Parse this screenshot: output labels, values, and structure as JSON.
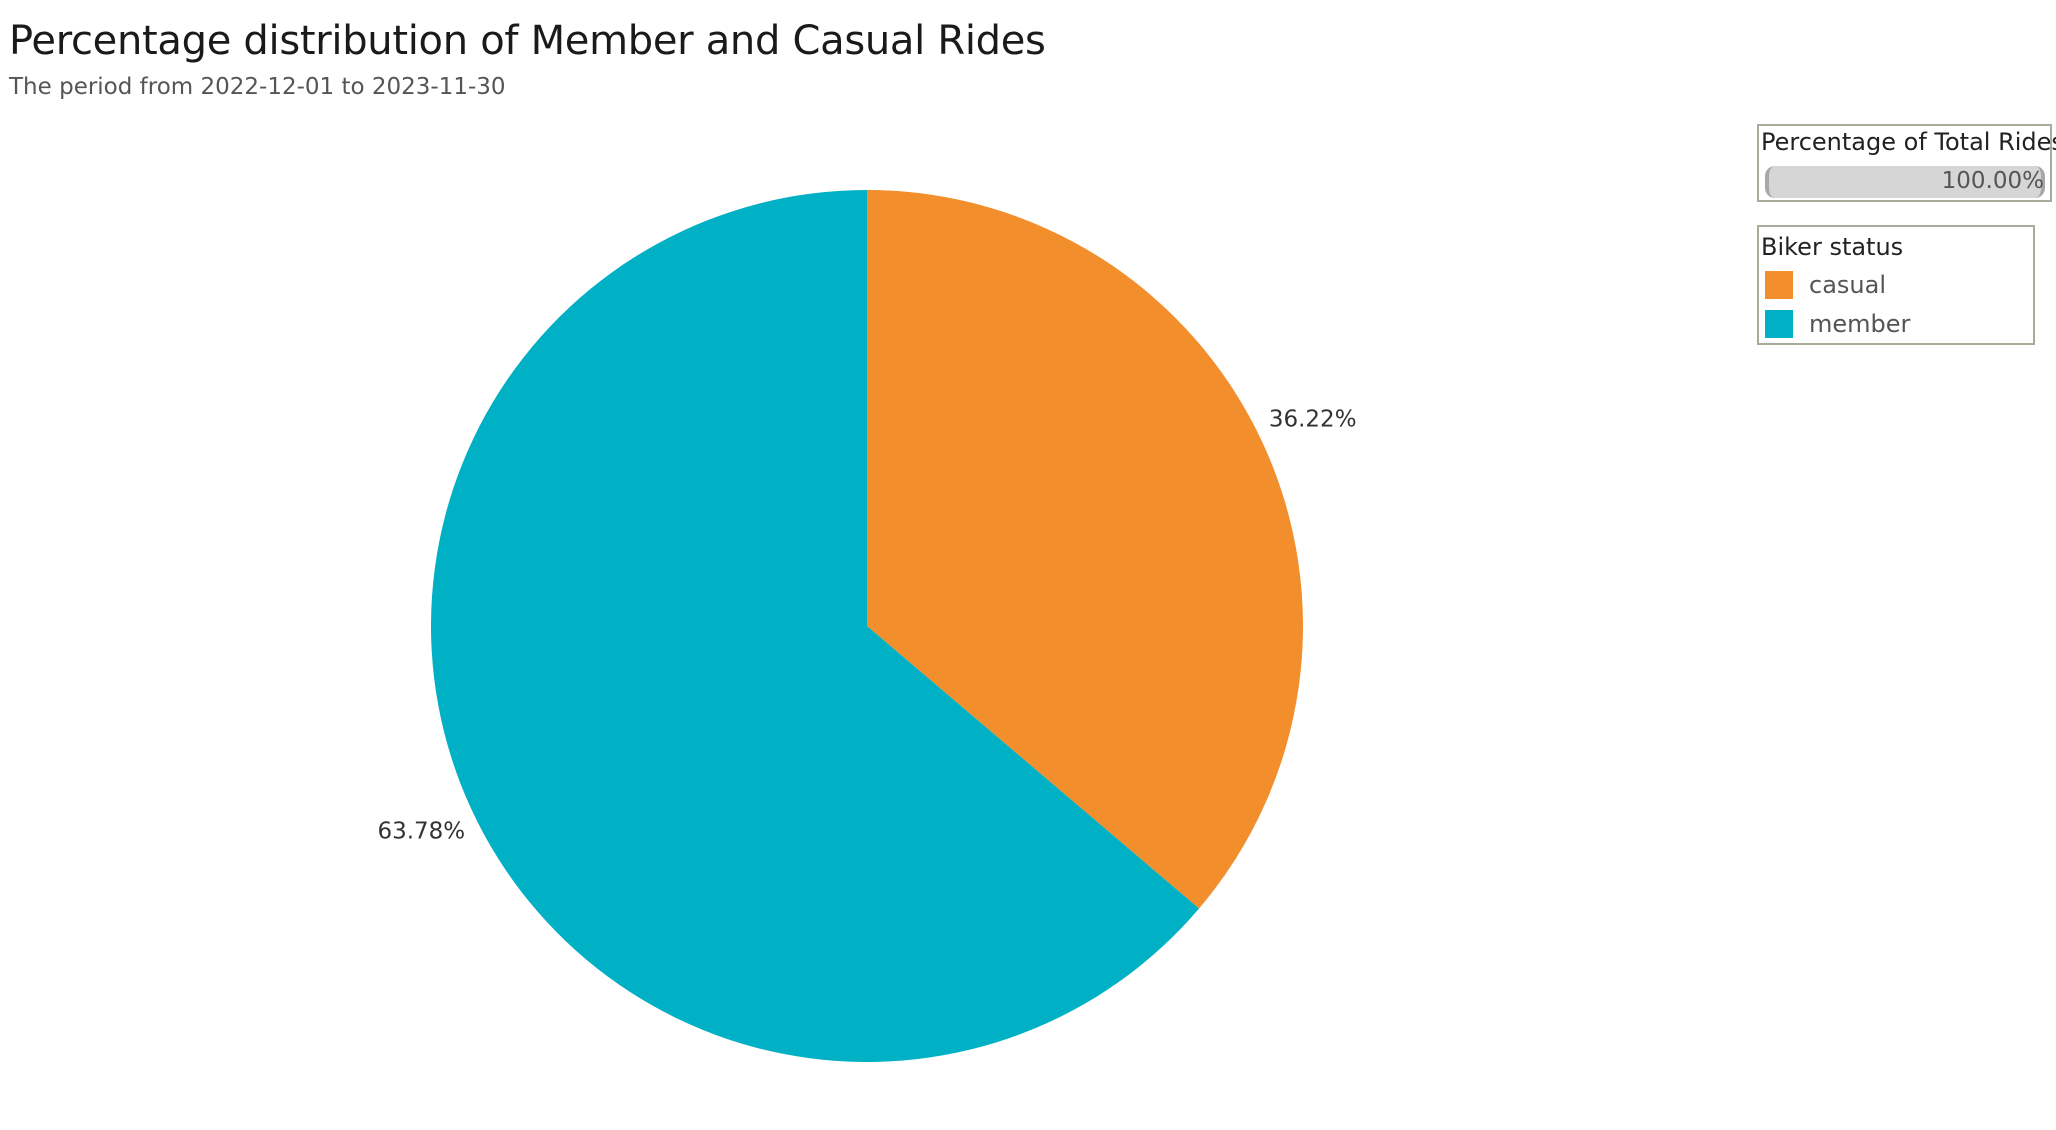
{
  "chart_data": {
    "type": "pie",
    "title": "Percentage distribution of Member and Casual Rides",
    "subtitle": "The period from 2022-12-01 to 2023-11-30",
    "categories": [
      "casual",
      "member"
    ],
    "values": [
      36.22,
      63.78
    ],
    "labels": [
      "36.22%",
      "63.78%"
    ],
    "colors": [
      "#f28e2b",
      "#00b0c4"
    ],
    "start_angle": "12 o'clock",
    "direction": "clockwise",
    "legend": {
      "color_title": "Biker status",
      "size_title": "Percentage of Total Rides",
      "size_value": "100.00%",
      "placement": "top-right"
    }
  }
}
